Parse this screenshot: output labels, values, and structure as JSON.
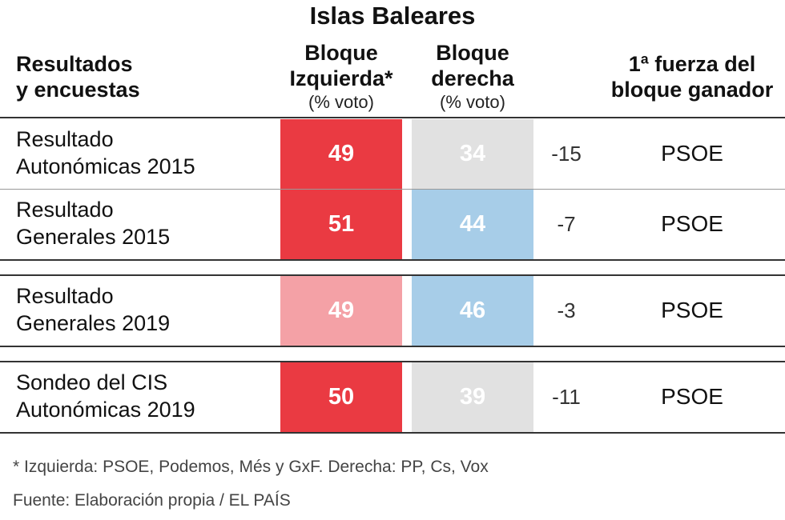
{
  "title": "Islas Baleares",
  "header": {
    "col_label_line1": "Resultados",
    "col_label_line2": "y encuestas",
    "izq_line1": "Bloque",
    "izq_line2": "Izquierda*",
    "izq_sub": "(% voto)",
    "der_line1": "Bloque",
    "der_line2": "derecha",
    "der_sub": "(% voto)",
    "fuerza_line1": "1ª fuerza del",
    "fuerza_line2": "bloque ganador"
  },
  "colors": {
    "izq_strong": "#ea3a42",
    "izq_light": "#f4a1a6",
    "der_gray": "#e1e1e1",
    "der_blue": "#a7cde8"
  },
  "chart_data": {
    "type": "table",
    "title": "Islas Baleares",
    "columns": [
      "Resultados y encuestas",
      "Bloque Izquierda* (% voto)",
      "Bloque derecha (% voto)",
      "",
      "1ª fuerza del bloque ganador"
    ],
    "rows": [
      {
        "label_line1": "Resultado",
        "label_line2": "Autonómicas 2015",
        "izquierda": 49,
        "derecha": 34,
        "diff": "-15",
        "fuerza": "PSOE",
        "izq_color": "#ea3a42",
        "der_color": "#e1e1e1"
      },
      {
        "label_line1": "Resultado",
        "label_line2": "Generales 2015",
        "izquierda": 51,
        "derecha": 44,
        "diff": "-7",
        "fuerza": "PSOE",
        "izq_color": "#ea3a42",
        "der_color": "#a7cde8"
      },
      {
        "label_line1": "Resultado",
        "label_line2": "Generales 2019",
        "izquierda": 49,
        "derecha": 46,
        "diff": "-3",
        "fuerza": "PSOE",
        "izq_color": "#f4a1a6",
        "der_color": "#a7cde8"
      },
      {
        "label_line1": "Sondeo del CIS",
        "label_line2": "Autonómicas 2019",
        "izquierda": 50,
        "derecha": 39,
        "diff": "-11",
        "fuerza": "PSOE",
        "izq_color": "#ea3a42",
        "der_color": "#e1e1e1"
      }
    ]
  },
  "footer": {
    "note": "* Izquierda: PSOE, Podemos, Més y GxF. Derecha: PP, Cs, Vox",
    "source": "Fuente: Elaboración propia / EL PAÍS"
  }
}
